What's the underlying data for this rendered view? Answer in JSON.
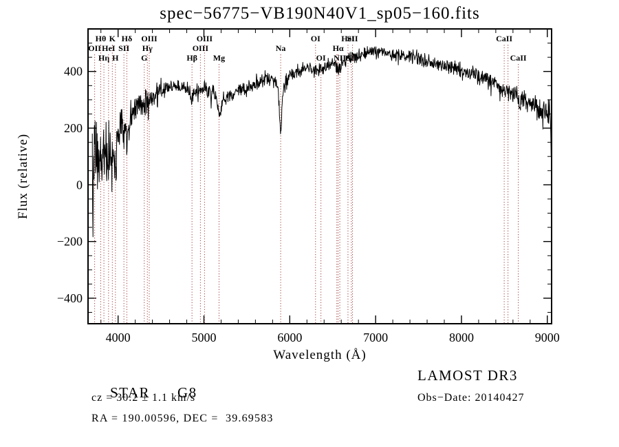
{
  "chart_data": {
    "type": "line",
    "title": "spec−56775−VB190N40V1_sp05−160.fits",
    "xlabel": "Wavelength (Å)",
    "ylabel": "Flux (relative)",
    "xlim": [
      3650,
      9050
    ],
    "ylim": [
      -490,
      550
    ],
    "x_ticks": [
      4000,
      5000,
      6000,
      7000,
      8000,
      9000
    ],
    "x_minor_step": 200,
    "y_ticks": [
      -400,
      -200,
      0,
      200,
      400
    ],
    "y_minor_step": 50,
    "grid": false,
    "legend": "none",
    "series_color": "#000000",
    "marker_line_color": "#9e3a3a",
    "series": [
      {
        "name": "flux",
        "x_start": 3700,
        "x_end": 9050,
        "x_step": 4,
        "seed": 20140427,
        "continuum": [
          [
            3700,
            -60
          ],
          [
            3715,
            30
          ],
          [
            3730,
            90
          ],
          [
            3750,
            110
          ],
          [
            3775,
            70
          ],
          [
            3800,
            95
          ],
          [
            3830,
            65
          ],
          [
            3860,
            115
          ],
          [
            3890,
            85
          ],
          [
            3910,
            120
          ],
          [
            3933,
            50
          ],
          [
            3950,
            110
          ],
          [
            3969,
            85
          ],
          [
            3985,
            140
          ],
          [
            4000,
            165
          ],
          [
            4030,
            185
          ],
          [
            4060,
            175
          ],
          [
            4080,
            195
          ],
          [
            4102,
            170
          ],
          [
            4130,
            215
          ],
          [
            4160,
            240
          ],
          [
            4200,
            268
          ],
          [
            4240,
            285
          ],
          [
            4270,
            292
          ],
          [
            4305,
            272
          ],
          [
            4325,
            285
          ],
          [
            4341,
            288
          ],
          [
            4365,
            300
          ],
          [
            4400,
            315
          ],
          [
            4450,
            325
          ],
          [
            4500,
            335
          ],
          [
            4560,
            342
          ],
          [
            4620,
            347
          ],
          [
            4700,
            350
          ],
          [
            4760,
            344
          ],
          [
            4820,
            338
          ],
          [
            4861,
            308
          ],
          [
            4900,
            330
          ],
          [
            4959,
            336
          ],
          [
            5007,
            340
          ],
          [
            5060,
            334
          ],
          [
            5110,
            325
          ],
          [
            5150,
            290
          ],
          [
            5176,
            248
          ],
          [
            5200,
            272
          ],
          [
            5230,
            300
          ],
          [
            5280,
            312
          ],
          [
            5340,
            322
          ],
          [
            5400,
            330
          ],
          [
            5470,
            340
          ],
          [
            5540,
            350
          ],
          [
            5610,
            360
          ],
          [
            5680,
            368
          ],
          [
            5750,
            373
          ],
          [
            5810,
            375
          ],
          [
            5860,
            352
          ],
          [
            5880,
            260
          ],
          [
            5894,
            175
          ],
          [
            5910,
            270
          ],
          [
            5930,
            345
          ],
          [
            5970,
            372
          ],
          [
            6010,
            385
          ],
          [
            6080,
            396
          ],
          [
            6150,
            404
          ],
          [
            6220,
            410
          ],
          [
            6300,
            412
          ],
          [
            6363,
            408
          ],
          [
            6430,
            422
          ],
          [
            6500,
            430
          ],
          [
            6548,
            420
          ],
          [
            6563,
            404
          ],
          [
            6583,
            418
          ],
          [
            6640,
            438
          ],
          [
            6700,
            448
          ],
          [
            6760,
            455
          ],
          [
            6830,
            462
          ],
          [
            6900,
            468
          ],
          [
            6960,
            472
          ],
          [
            7020,
            473
          ],
          [
            7090,
            469
          ],
          [
            7160,
            463
          ],
          [
            7230,
            458
          ],
          [
            7300,
            455
          ],
          [
            7380,
            452
          ],
          [
            7450,
            448
          ],
          [
            7520,
            444
          ],
          [
            7590,
            434
          ],
          [
            7660,
            429
          ],
          [
            7730,
            425
          ],
          [
            7800,
            421
          ],
          [
            7870,
            416
          ],
          [
            7940,
            410
          ],
          [
            8010,
            404
          ],
          [
            8080,
            397
          ],
          [
            8150,
            390
          ],
          [
            8230,
            382
          ],
          [
            8300,
            372
          ],
          [
            8370,
            360
          ],
          [
            8440,
            350
          ],
          [
            8498,
            332
          ],
          [
            8520,
            338
          ],
          [
            8542,
            326
          ],
          [
            8580,
            328
          ],
          [
            8620,
            318
          ],
          [
            8662,
            300
          ],
          [
            8700,
            302
          ],
          [
            8760,
            295
          ],
          [
            8830,
            284
          ],
          [
            8900,
            272
          ],
          [
            8960,
            262
          ],
          [
            9020,
            252
          ],
          [
            9035,
            245
          ],
          [
            9045,
            90
          ]
        ],
        "noise_amplitude": [
          [
            3700,
            210
          ],
          [
            3750,
            190
          ],
          [
            3800,
            160
          ],
          [
            3850,
            145
          ],
          [
            3900,
            125
          ],
          [
            3950,
            112
          ],
          [
            4000,
            95
          ],
          [
            4060,
            82
          ],
          [
            4120,
            72
          ],
          [
            4200,
            60
          ],
          [
            4300,
            50
          ],
          [
            4400,
            44
          ],
          [
            4550,
            38
          ],
          [
            4700,
            33
          ],
          [
            4900,
            31
          ],
          [
            5100,
            30
          ],
          [
            5300,
            28
          ],
          [
            5500,
            28
          ],
          [
            5700,
            27
          ],
          [
            5894,
            34
          ],
          [
            6000,
            27
          ],
          [
            6200,
            28
          ],
          [
            6400,
            27
          ],
          [
            6563,
            27
          ],
          [
            6800,
            24
          ],
          [
            7000,
            23
          ],
          [
            7200,
            24
          ],
          [
            7400,
            25
          ],
          [
            7600,
            27
          ],
          [
            7800,
            27
          ],
          [
            8000,
            29
          ],
          [
            8200,
            31
          ],
          [
            8400,
            33
          ],
          [
            8600,
            35
          ],
          [
            8800,
            38
          ],
          [
            9000,
            46
          ],
          [
            9050,
            60
          ]
        ]
      }
    ],
    "spectral_lines": [
      {
        "wavelength": 3727,
        "label": "OII",
        "row": 2
      },
      {
        "wavelength": 3798,
        "label": "Hθ",
        "row": 1
      },
      {
        "wavelength": 3835,
        "label": "Hη",
        "row": 3
      },
      {
        "wavelength": 3889,
        "label": "HeI",
        "row": 2
      },
      {
        "wavelength": 3933,
        "label": "K",
        "row": 1
      },
      {
        "wavelength": 3969,
        "label": "H",
        "row": 3
      },
      {
        "wavelength": 4068,
        "label": "SII",
        "row": 2
      },
      {
        "wavelength": 4102,
        "label": "Hδ",
        "row": 1
      },
      {
        "wavelength": 4305,
        "label": "G",
        "row": 3
      },
      {
        "wavelength": 4341,
        "label": "Hγ",
        "row": 2
      },
      {
        "wavelength": 4363,
        "label": "OIII",
        "row": 1
      },
      {
        "wavelength": 4861,
        "label": "Hβ",
        "row": 3
      },
      {
        "wavelength": 4959,
        "label": "OIII",
        "row": 2
      },
      {
        "wavelength": 5007,
        "label": "OIII",
        "row": 1
      },
      {
        "wavelength": 5176,
        "label": "Mg",
        "row": 3
      },
      {
        "wavelength": 5894,
        "label": "Na",
        "row": 2
      },
      {
        "wavelength": 6300,
        "label": "OI",
        "row": 1
      },
      {
        "wavelength": 6363,
        "label": "OI",
        "row": 3
      },
      {
        "wavelength": 6548,
        "label": "",
        "row": 2
      },
      {
        "wavelength": 6563,
        "label": "Hα",
        "row": 2
      },
      {
        "wavelength": 6583,
        "label": "NII",
        "row": 3
      },
      {
        "wavelength": 6678,
        "label": "HeI",
        "row": 1
      },
      {
        "wavelength": 6717,
        "label": "SII",
        "row": 3
      },
      {
        "wavelength": 6731,
        "label": "SII",
        "row": 1
      },
      {
        "wavelength": 8498,
        "label": "CaII",
        "row": 1
      },
      {
        "wavelength": 8542,
        "label": "",
        "row": 1
      },
      {
        "wavelength": 8662,
        "label": "CaII",
        "row": 3
      }
    ]
  },
  "annotations": {
    "class": "STAR",
    "subclass": "G8",
    "survey": "LAMOST DR3",
    "cz": "cz = 30.2 ± 1.1 km/s",
    "obs_date": "Obs−Date: 20140427",
    "ra_dec": "RA = 190.00596, DEC =  39.69583"
  }
}
